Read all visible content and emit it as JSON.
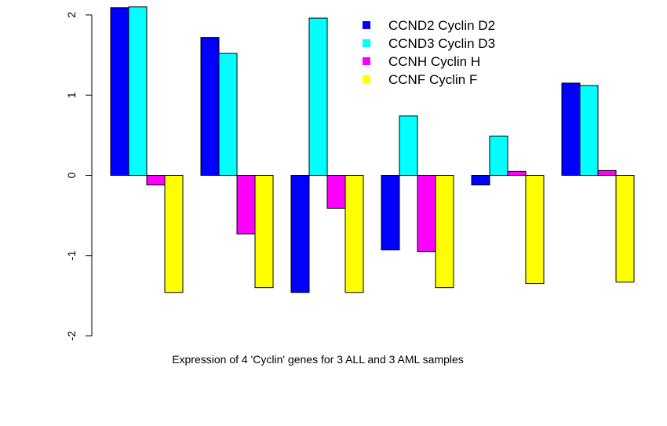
{
  "chart_data": {
    "type": "bar",
    "title": "",
    "xlabel": "Expression of 4 'Cyclin' genes for 3 ALL and 3 AML samples",
    "ylabel": "",
    "ylim": [
      -2,
      2
    ],
    "yticks": [
      "-2",
      "-1",
      "0",
      "1",
      "2"
    ],
    "groups": 6,
    "series": [
      {
        "name": "CCND2 Cyclin D2",
        "color": "#0000FF",
        "values": [
          2.09,
          1.72,
          -1.46,
          -0.93,
          -0.12,
          1.15
        ]
      },
      {
        "name": "CCND3 Cyclin D3",
        "color": "#00FFFF",
        "values": [
          2.1,
          1.52,
          1.96,
          0.74,
          0.49,
          1.12
        ]
      },
      {
        "name": "CCNH Cyclin H",
        "color": "#FF00FF",
        "values": [
          -0.12,
          -0.73,
          -0.41,
          -0.95,
          0.05,
          0.06
        ]
      },
      {
        "name": "CCNF Cyclin F",
        "color": "#FFFF00",
        "values": [
          -1.46,
          -1.4,
          -1.46,
          -1.4,
          -1.35,
          -1.33
        ]
      }
    ],
    "legend": "top-right",
    "grid": false
  }
}
